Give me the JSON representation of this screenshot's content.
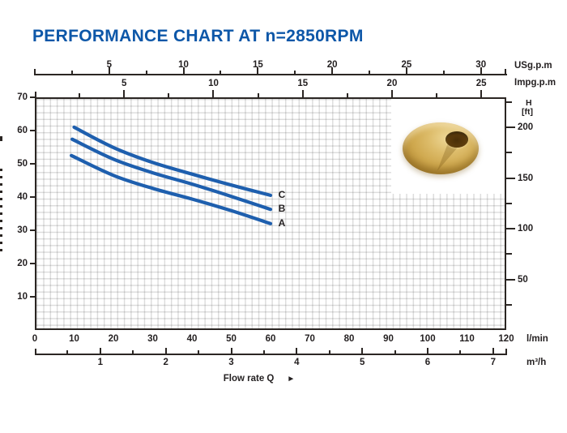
{
  "title": "PERFORMANCE CHART AT n=2850RPM",
  "colors": {
    "title_blue": "#0d57a8",
    "curve_blue": "#1e5fae",
    "axis_ink": "#2b2623",
    "grid_gray": "#d9d9d9",
    "impeller_gold": "#cfa84e"
  },
  "photo": {
    "subject": "brass-impeller"
  },
  "chart_data": {
    "type": "line",
    "title": "PERFORMANCE CHART AT n=2850RPM",
    "xlabel": "Flow rate Q",
    "xlabel_arrow": "►",
    "x_primary_unit": "l/min",
    "y_primary_unit": "m",
    "xlim": [
      0,
      120
    ],
    "ylim": [
      0,
      70
    ],
    "grid": "fine light-gray square grid",
    "legend_position": "inline-right-of-curves",
    "axes": {
      "top_usgpm": {
        "unit": "USg.p.m",
        "major_ticks": [
          5,
          10,
          15,
          20,
          25,
          30
        ],
        "minor_step": 2.5,
        "lmin_per_unit": 3.785
      },
      "top_impgpm": {
        "unit": "Impg.p.m",
        "major_ticks": [
          5,
          10,
          15,
          20,
          25
        ],
        "minor_step": 2.5,
        "lmin_per_unit": 4.546
      },
      "bottom_lmin": {
        "unit": "l/min",
        "major_ticks": [
          0,
          10,
          20,
          30,
          40,
          50,
          60,
          70,
          80,
          90,
          100,
          110,
          120
        ]
      },
      "bottom_m3h": {
        "unit": "m³/h",
        "major_ticks": [
          1,
          2,
          3,
          4,
          5,
          6,
          7
        ],
        "minor_step": 0.5,
        "lmin_per_unit": 16.667
      },
      "left_m": {
        "major_ticks": [
          10,
          20,
          30,
          40,
          50,
          60,
          70
        ]
      },
      "right_ft": {
        "unit_line1": "H",
        "unit_line2": "[ft]",
        "major_ticks": [
          50,
          100,
          150,
          200
        ],
        "minor_step": 25,
        "m_per_ft": 0.3048
      }
    },
    "series": [
      {
        "name": "C",
        "points_lmin_m": [
          [
            10,
            61.0
          ],
          [
            20,
            54.9
          ],
          [
            30,
            50.4
          ],
          [
            40,
            46.9
          ],
          [
            50,
            43.6
          ],
          [
            60,
            40.5
          ]
        ]
      },
      {
        "name": "B",
        "points_lmin_m": [
          [
            9.5,
            57.4
          ],
          [
            20,
            51.4
          ],
          [
            30,
            47.3
          ],
          [
            40,
            43.9
          ],
          [
            50,
            40.2
          ],
          [
            60,
            36.3
          ]
        ]
      },
      {
        "name": "A",
        "points_lmin_m": [
          [
            9.3,
            52.5
          ],
          [
            20,
            46.5
          ],
          [
            30,
            42.6
          ],
          [
            40,
            39.4
          ],
          [
            50,
            35.9
          ],
          [
            60,
            32.0
          ]
        ]
      }
    ]
  }
}
